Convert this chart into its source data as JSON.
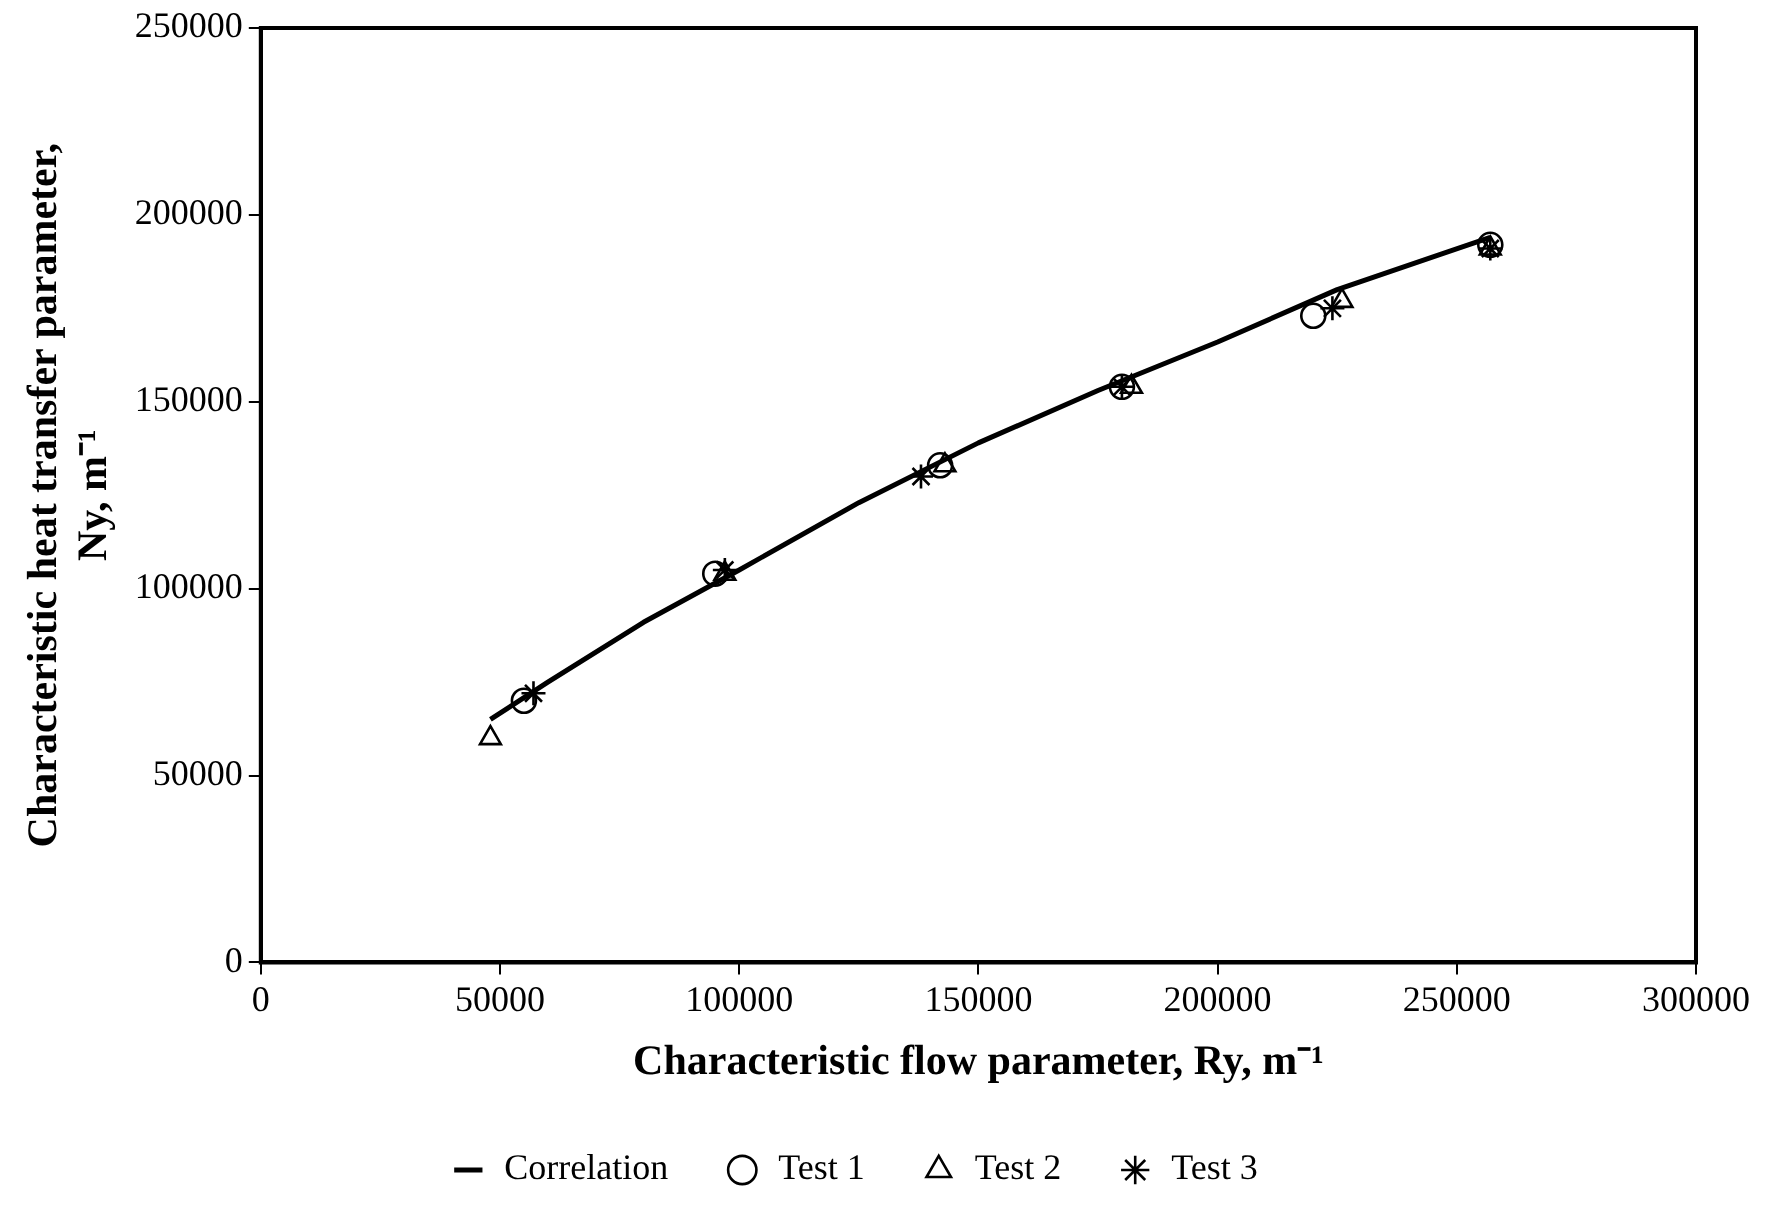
{
  "chart_data": {
    "type": "scatter",
    "xlabel": "Characteristic flow parameter, Ry, m⁻¹",
    "ylabel": "Characteristic heat transfer parameter, Ny, m⁻¹",
    "xlim": [
      0,
      300000
    ],
    "xticks": [
      0,
      50000,
      100000,
      150000,
      200000,
      250000,
      300000
    ],
    "ylim": [
      0,
      250000
    ],
    "yticks": [
      0,
      50000,
      100000,
      150000,
      200000,
      250000
    ],
    "grid": false,
    "legend": "bottom",
    "series": [
      {
        "name": "Correlation",
        "type": "line",
        "marker": "none",
        "line_style": "solid",
        "color": "#000000",
        "x": [
          48000,
          60000,
          80000,
          100000,
          125000,
          150000,
          175000,
          200000,
          225000,
          257000
        ],
        "values": [
          65000,
          75000,
          91000,
          105000,
          123000,
          139000,
          153000,
          166000,
          180000,
          194000
        ]
      },
      {
        "name": "Test 1",
        "marker": "circle",
        "color": "#000000",
        "x": [
          55000,
          95000,
          142000,
          180000,
          220000,
          257000
        ],
        "values": [
          70000,
          104000,
          133000,
          154000,
          173000,
          192000
        ]
      },
      {
        "name": "Test 2",
        "marker": "triangle",
        "color": "#000000",
        "x": [
          48000,
          97000,
          143000,
          182000,
          226000,
          257000
        ],
        "values": [
          60000,
          104000,
          133000,
          154000,
          177000,
          191000
        ]
      },
      {
        "name": "Test 3",
        "marker": "cross",
        "color": "#000000",
        "x": [
          57000,
          97000,
          138000,
          180000,
          224000,
          257000
        ],
        "values": [
          72000,
          105000,
          130000,
          154000,
          175000,
          191000
        ]
      }
    ]
  }
}
